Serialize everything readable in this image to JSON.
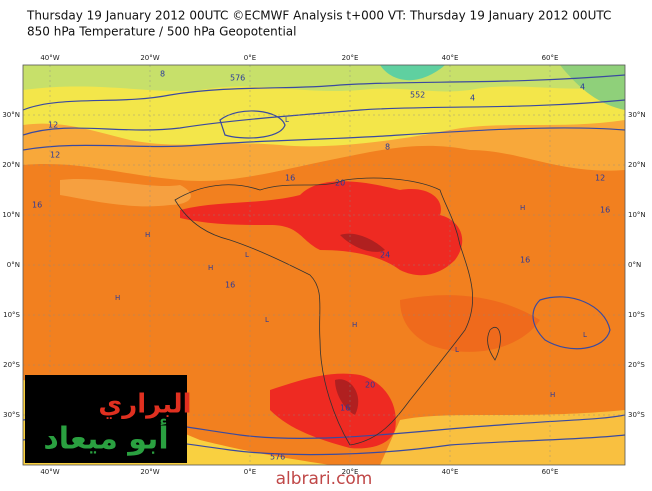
{
  "header": {
    "line1": "Thursday 19 January 2012 00UTC ©ECMWF Analysis t+000 VT: Thursday 19 January 2012 00UTC",
    "line2": "850 hPa Temperature / 500 hPa Geopotential"
  },
  "lat_labels": [
    "30°N",
    "20°N",
    "10°N",
    "0°N",
    "10°S",
    "20°S",
    "30°S"
  ],
  "lon_labels": [
    "40°W",
    "20°W",
    "0°E",
    "20°E",
    "40°E",
    "60°E"
  ],
  "contour_labels": [
    "8",
    "4",
    "576",
    "552",
    "12",
    "16",
    "20",
    "24",
    "16",
    "16",
    "12",
    "16",
    "20",
    "16",
    "576",
    "8",
    "4",
    "12",
    "16"
  ],
  "markers": [
    "H",
    "H",
    "H",
    "L",
    "L",
    "H",
    "L",
    "H",
    "L",
    "H",
    "L"
  ],
  "logo": {
    "top": "البراري",
    "bottom": "أبو ميعاد"
  },
  "watermark": "albrari.com"
}
